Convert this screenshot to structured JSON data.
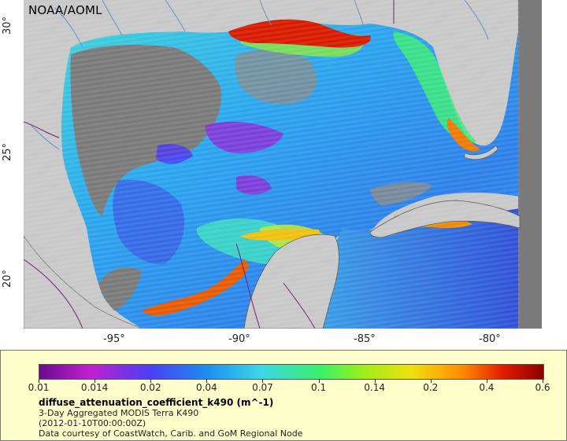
{
  "map": {
    "credit": "NOAA/AOML",
    "lat_ticks": [
      {
        "label": "30°",
        "value": 30
      },
      {
        "label": "25°",
        "value": 25
      },
      {
        "label": "20°",
        "value": 20
      }
    ],
    "lon_ticks": [
      {
        "label": "-95°",
        "value": -95
      },
      {
        "label": "-90°",
        "value": -90
      },
      {
        "label": "-85°",
        "value": -85
      },
      {
        "label": "-80°",
        "value": -80
      }
    ],
    "colors": {
      "land": "#c8c8c8",
      "nodata": "#7a7a7a",
      "rivers": "#6a8fc8",
      "borders": "#7a1f6f"
    }
  },
  "legend": {
    "ticks": [
      "0.01",
      "0.014",
      "0.02",
      "0.04",
      "0.07",
      "0.1",
      "0.14",
      "0.2",
      "0.4",
      "0.6"
    ],
    "variable": "diffuse_attenuation_coefficient_k490 (m^-1)",
    "line1": "3-Day Aggregated MODIS Terra K490",
    "line2": "(2012-01-10T00:00:00Z)",
    "line3": "Data courtesy of CoastWatch, Carib. and GoM Regional Node"
  }
}
